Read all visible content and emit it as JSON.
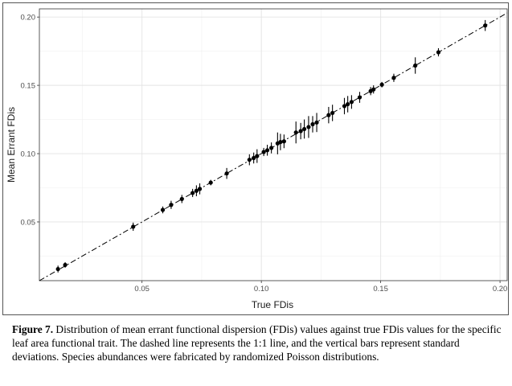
{
  "chart_data": {
    "type": "scatter",
    "xlabel": "True FDis",
    "ylabel": "Mean Errant FDis",
    "xlim": [
      0.007,
      0.203
    ],
    "ylim": [
      0.007,
      0.206
    ],
    "x_ticks": [
      "0.05",
      "0.10",
      "0.15",
      "0.20"
    ],
    "y_ticks": [
      "0.05",
      "0.10",
      "0.15",
      "0.20"
    ],
    "grid": true,
    "reference_line": {
      "label": "1:1",
      "style": "dashed"
    },
    "points": [
      {
        "x": 0.0148,
        "y": 0.0155,
        "sd": 0.0025
      },
      {
        "x": 0.0178,
        "y": 0.0185,
        "sd": 0.002
      },
      {
        "x": 0.0463,
        "y": 0.0465,
        "sd": 0.003
      },
      {
        "x": 0.0587,
        "y": 0.0588,
        "sd": 0.0025
      },
      {
        "x": 0.0622,
        "y": 0.0625,
        "sd": 0.003
      },
      {
        "x": 0.0667,
        "y": 0.0668,
        "sd": 0.003
      },
      {
        "x": 0.0712,
        "y": 0.0712,
        "sd": 0.003
      },
      {
        "x": 0.0728,
        "y": 0.0728,
        "sd": 0.004
      },
      {
        "x": 0.0742,
        "y": 0.0742,
        "sd": 0.004
      },
      {
        "x": 0.0788,
        "y": 0.0788,
        "sd": 0.002
      },
      {
        "x": 0.0855,
        "y": 0.0855,
        "sd": 0.004
      },
      {
        "x": 0.095,
        "y": 0.0955,
        "sd": 0.004
      },
      {
        "x": 0.0968,
        "y": 0.0968,
        "sd": 0.004
      },
      {
        "x": 0.0982,
        "y": 0.0982,
        "sd": 0.005
      },
      {
        "x": 0.101,
        "y": 0.1012,
        "sd": 0.003
      },
      {
        "x": 0.1025,
        "y": 0.1025,
        "sd": 0.004
      },
      {
        "x": 0.1042,
        "y": 0.1042,
        "sd": 0.004
      },
      {
        "x": 0.1068,
        "y": 0.1075,
        "sd": 0.008
      },
      {
        "x": 0.108,
        "y": 0.1085,
        "sd": 0.006
      },
      {
        "x": 0.1095,
        "y": 0.109,
        "sd": 0.005
      },
      {
        "x": 0.1145,
        "y": 0.1155,
        "sd": 0.008
      },
      {
        "x": 0.1165,
        "y": 0.1165,
        "sd": 0.006
      },
      {
        "x": 0.118,
        "y": 0.118,
        "sd": 0.007
      },
      {
        "x": 0.1198,
        "y": 0.1195,
        "sd": 0.008
      },
      {
        "x": 0.1215,
        "y": 0.1215,
        "sd": 0.006
      },
      {
        "x": 0.1232,
        "y": 0.1228,
        "sd": 0.007
      },
      {
        "x": 0.1282,
        "y": 0.1282,
        "sd": 0.006
      },
      {
        "x": 0.1298,
        "y": 0.1298,
        "sd": 0.006
      },
      {
        "x": 0.1348,
        "y": 0.1348,
        "sd": 0.006
      },
      {
        "x": 0.1362,
        "y": 0.1362,
        "sd": 0.006
      },
      {
        "x": 0.1378,
        "y": 0.1378,
        "sd": 0.005
      },
      {
        "x": 0.1412,
        "y": 0.1412,
        "sd": 0.004
      },
      {
        "x": 0.1458,
        "y": 0.1458,
        "sd": 0.003
      },
      {
        "x": 0.147,
        "y": 0.147,
        "sd": 0.003
      },
      {
        "x": 0.1505,
        "y": 0.1505,
        "sd": 0.002
      },
      {
        "x": 0.1555,
        "y": 0.1555,
        "sd": 0.003
      },
      {
        "x": 0.1645,
        "y": 0.1645,
        "sd": 0.006
      },
      {
        "x": 0.1742,
        "y": 0.1742,
        "sd": 0.003
      },
      {
        "x": 0.1938,
        "y": 0.1938,
        "sd": 0.004
      }
    ]
  },
  "caption": {
    "label": "Figure 7.",
    "text": " Distribution of mean errant functional dispersion (FDis) values against true FDis values for the specific leaf area functional trait. The dashed line represents the 1:1 line, and the vertical bars represent standard deviations. Species abundances were fabricated by randomized Poisson distributions."
  }
}
